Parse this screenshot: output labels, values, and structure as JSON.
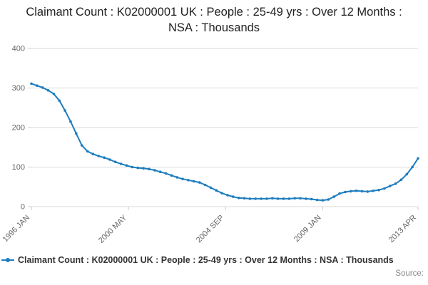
{
  "title": "Claimant Count : K02000001 UK : People : 25-49 yrs : Over 12 Months : NSA : Thousands",
  "legend": {
    "label": "Claimant Count : K02000001 UK : People : 25-49 yrs : Over 12 Months : NSA : Thousands"
  },
  "source_label": "Source:",
  "colors": {
    "line": "#1d7dbf",
    "grid": "#d8d8d8",
    "tick": "#cccccc",
    "axis_text": "#666666",
    "title_text": "#222222"
  },
  "chart_data": {
    "type": "line",
    "title": "Claimant Count : K02000001 UK : People : 25-49 yrs : Over 12 Months : NSA : Thousands",
    "xlabel": "",
    "ylabel": "",
    "x_unit": "months since 1996-01 (monthly series, quarterly sampled estimates)",
    "xlim": [
      0,
      207
    ],
    "ylim": [
      0,
      400
    ],
    "grid": "horizontal",
    "legend_position": "bottom",
    "y_ticks": [
      0,
      100,
      200,
      300,
      400
    ],
    "x_ticks": [
      {
        "m": 0,
        "label": "1996 JAN"
      },
      {
        "m": 52,
        "label": "2000 MAY"
      },
      {
        "m": 104,
        "label": "2004 SEP"
      },
      {
        "m": 156,
        "label": "2009 JAN"
      },
      {
        "m": 207,
        "label": "2013 APR"
      }
    ],
    "x": [
      0,
      3,
      6,
      9,
      12,
      15,
      18,
      21,
      24,
      27,
      30,
      33,
      36,
      39,
      42,
      45,
      48,
      51,
      54,
      57,
      60,
      63,
      66,
      69,
      72,
      75,
      78,
      81,
      84,
      87,
      90,
      93,
      96,
      99,
      102,
      105,
      108,
      111,
      114,
      117,
      120,
      123,
      126,
      129,
      132,
      135,
      138,
      141,
      144,
      147,
      150,
      153,
      156,
      159,
      162,
      165,
      168,
      171,
      174,
      177,
      180,
      183,
      186,
      189,
      192,
      195,
      198,
      201,
      204,
      207
    ],
    "values": [
      311,
      306,
      301,
      294,
      285,
      268,
      243,
      215,
      185,
      155,
      140,
      133,
      128,
      124,
      119,
      113,
      108,
      104,
      100,
      98,
      97,
      95,
      92,
      88,
      84,
      79,
      74,
      70,
      67,
      64,
      61,
      55,
      48,
      41,
      34,
      29,
      25,
      22,
      21,
      20,
      20,
      20,
      20,
      21,
      20,
      20,
      20,
      21,
      21,
      20,
      19,
      17,
      16,
      18,
      25,
      33,
      37,
      39,
      40,
      39,
      38,
      40,
      42,
      46,
      52,
      58,
      68,
      82,
      100,
      122
    ]
  }
}
